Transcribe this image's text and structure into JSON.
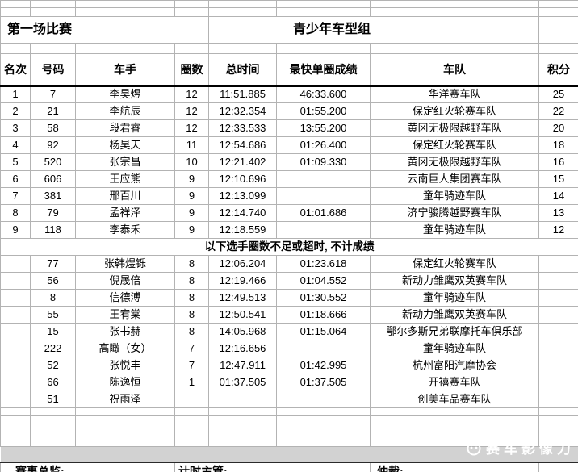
{
  "title": {
    "left": "第一场比赛",
    "center": "青少年车型组"
  },
  "table": {
    "headers": [
      "名次",
      "号码",
      "车手",
      "圈数",
      "总时间",
      "最快单圈成绩",
      "车队",
      "积分"
    ],
    "ranked": [
      [
        "1",
        "7",
        "李昊煜",
        "12",
        "11:51.885",
        "46:33.600",
        "华洋赛车队",
        "25"
      ],
      [
        "2",
        "21",
        "李航辰",
        "12",
        "12:32.354",
        "01:55.200",
        "保定红火轮赛车队",
        "22"
      ],
      [
        "3",
        "58",
        "段君睿",
        "12",
        "12:33.533",
        "13:55.200",
        "黄冈无极限越野车队",
        "20"
      ],
      [
        "4",
        "92",
        "杨昊天",
        "11",
        "12:54.686",
        "01:26.400",
        "保定红火轮赛车队",
        "18"
      ],
      [
        "5",
        "520",
        "张宗昌",
        "10",
        "12:21.402",
        "01:09.330",
        "黄冈无极限越野车队",
        "16"
      ],
      [
        "6",
        "606",
        "王应熊",
        "9",
        "12:10.696",
        "",
        "云南巨人集团赛车队",
        "15"
      ],
      [
        "7",
        "381",
        "邢百川",
        "9",
        "12:13.099",
        "",
        "童年骑迹车队",
        "14"
      ],
      [
        "8",
        "79",
        "孟祥泽",
        "9",
        "12:14.740",
        "01:01.686",
        "济宁骏腾越野赛车队",
        "13"
      ],
      [
        "9",
        "118",
        "李泰禾",
        "9",
        "12:18.559",
        "",
        "童年骑迹车队",
        "12"
      ]
    ],
    "separator": "以下选手圈数不足或超时, 不计成绩",
    "unranked": [
      [
        "",
        "77",
        "张韩煜铄",
        "8",
        "12:06.204",
        "01:23.618",
        "保定红火轮赛车队",
        ""
      ],
      [
        "",
        "56",
        "倪晟倍",
        "8",
        "12:19.466",
        "01:04.552",
        "新动力雏鹰双英赛车队",
        ""
      ],
      [
        "",
        "8",
        "信德溥",
        "8",
        "12:49.513",
        "01:30.552",
        "童年骑迹车队",
        ""
      ],
      [
        "",
        "55",
        "王宥棠",
        "8",
        "12:50.541",
        "01:18.666",
        "新动力雏鹰双英赛车队",
        ""
      ],
      [
        "",
        "15",
        "张书赫",
        "8",
        "14:05.968",
        "01:15.064",
        "鄂尔多斯兄弟联摩托车俱乐部",
        ""
      ],
      [
        "",
        "222",
        "高瞰（女）",
        "7",
        "12:16.656",
        "",
        "童年骑迹车队",
        ""
      ],
      [
        "",
        "52",
        "张悦丰",
        "7",
        "12:47.911",
        "01:42.995",
        "杭州富阳汽摩协会",
        ""
      ],
      [
        "",
        "66",
        "陈逸恒",
        "1",
        "01:37.505",
        "01:37.505",
        "开禧赛车队",
        ""
      ],
      [
        "",
        "51",
        "祝雨泽",
        "",
        "",
        "",
        "创美车品赛车队",
        ""
      ]
    ]
  },
  "footer": {
    "labels": [
      "赛事总监:",
      "计时主管:",
      "仲裁:"
    ]
  },
  "watermark": {
    "text": "赛车影像力"
  },
  "colors": {
    "grid": "#b3b3b3",
    "band": "#d2d2d2",
    "header_rule": "#000000"
  }
}
